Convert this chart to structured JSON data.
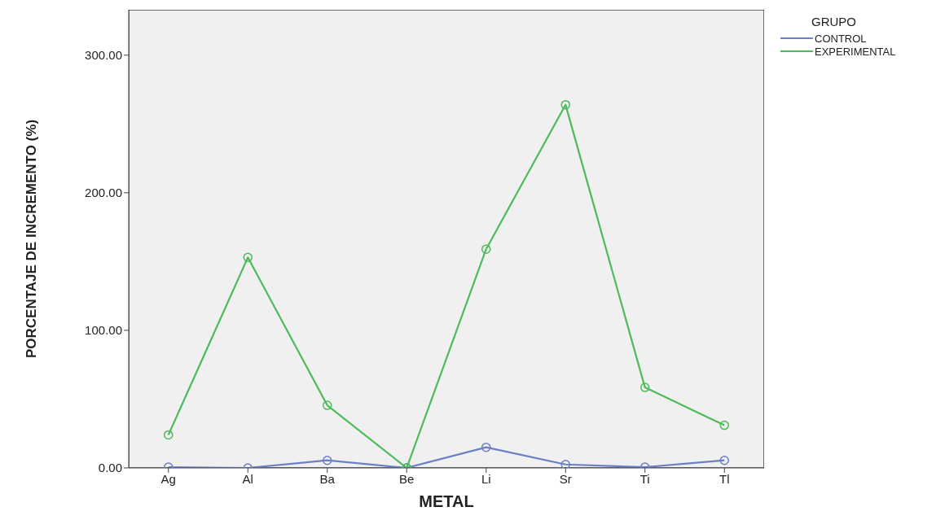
{
  "chart_data": {
    "type": "line",
    "xlabel": "METAL",
    "ylabel": "PORCENTAJE DE INCREMENTO (%)",
    "legend_title": "GRUPO",
    "categories": [
      "Ag",
      "Al",
      "Ba",
      "Be",
      "Li",
      "Sr",
      "Ti",
      "Tl"
    ],
    "series": [
      {
        "name": "CONTROL",
        "color": "#6b7fc4",
        "values": [
          0.6,
          0,
          5.5,
          0,
          15,
          2.5,
          0.6,
          5.5
        ]
      },
      {
        "name": "EXPERIMENTAL",
        "color": "#4cbb5a",
        "values": [
          24,
          153,
          45.5,
          0,
          159,
          264,
          58.5,
          31
        ]
      }
    ],
    "ylim": [
      0,
      333
    ],
    "yticks": [
      {
        "value": 0,
        "label": "0.00"
      },
      {
        "value": 100,
        "label": "100.00"
      },
      {
        "value": 200,
        "label": "200.00"
      },
      {
        "value": 300,
        "label": "300.00"
      }
    ],
    "grid": false,
    "legend": "top right",
    "marker": "circle",
    "line_style": "solid"
  }
}
